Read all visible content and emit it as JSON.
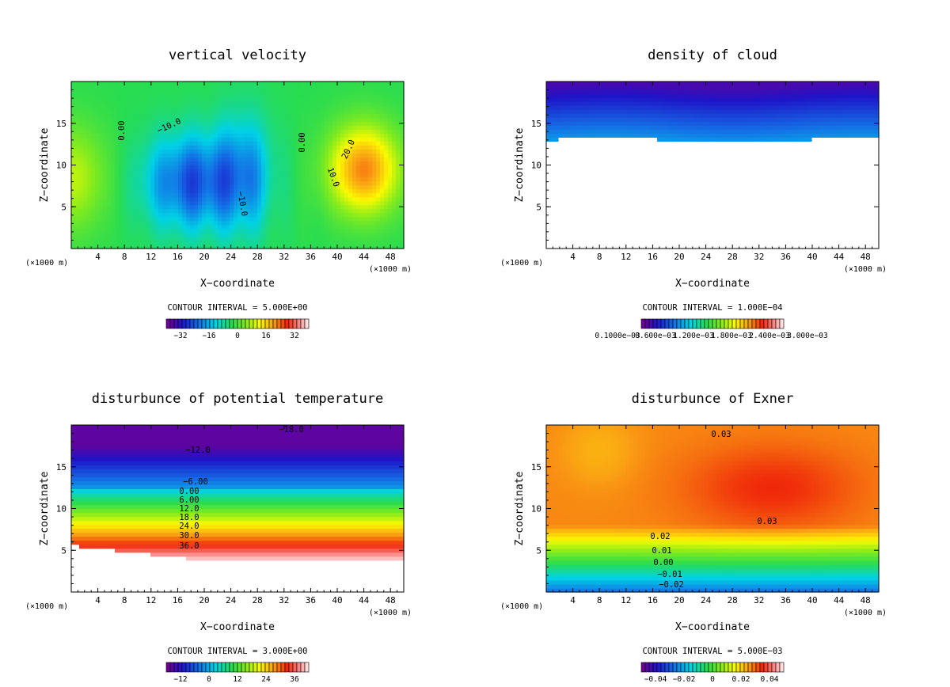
{
  "chart_data": [
    {
      "type": "heatmap",
      "title": "vertical velocity",
      "xlabel": "X−coordinate",
      "ylabel": "Z−coordinate",
      "xlim": [
        0,
        50
      ],
      "ylim": [
        0,
        20
      ],
      "xticks": [
        4,
        8,
        12,
        16,
        20,
        24,
        28,
        32,
        36,
        40,
        44,
        48
      ],
      "yticks": [
        5,
        10,
        15
      ],
      "x_unit_label": "(×1000 m)",
      "contour_interval": "CONTOUR INTERVAL = 5.000E+00",
      "colorbar_ticks": [
        "−32",
        "−16",
        "0",
        "16",
        "32"
      ],
      "contour_labels": [
        "0.00",
        "0.00",
        "−10.0",
        "−10.0",
        "10.0",
        "20.0"
      ],
      "field": "velocity"
    },
    {
      "type": "heatmap",
      "title": "density of cloud",
      "xlabel": "X−coordinate",
      "ylabel": "Z−coordinate",
      "xlim": [
        0,
        50
      ],
      "ylim": [
        0,
        20
      ],
      "xticks": [
        4,
        8,
        12,
        16,
        20,
        24,
        28,
        32,
        36,
        40,
        44,
        48
      ],
      "yticks": [
        5,
        10,
        15
      ],
      "x_unit_label": "(×1000 m)",
      "contour_interval": "CONTOUR INTERVAL = 1.000E−04",
      "colorbar_ticks": [
        "0.1000e−03",
        "0.600e−03",
        "1.200e−03",
        "1.800e−03",
        "2.400e−03",
        "3.000e−03"
      ],
      "contour_labels": [],
      "field": "cloud"
    },
    {
      "type": "heatmap",
      "title": "disturbunce of potential temperature",
      "xlabel": "X−coordinate",
      "ylabel": "Z−coordinate",
      "xlim": [
        0,
        50
      ],
      "ylim": [
        0,
        20
      ],
      "xticks": [
        4,
        8,
        12,
        16,
        20,
        24,
        28,
        32,
        36,
        40,
        44,
        48
      ],
      "yticks": [
        5,
        10,
        15
      ],
      "x_unit_label": "(×1000 m)",
      "contour_interval": "CONTOUR INTERVAL = 3.000E+00",
      "colorbar_ticks": [
        "−12",
        "0",
        "12",
        "24",
        "36"
      ],
      "contour_labels": [
        "−18.0",
        "−12.0",
        "−6.00",
        "0.00",
        "6.00",
        "12.0",
        "18.0",
        "24.0",
        "30.0",
        "36.0"
      ],
      "field": "theta"
    },
    {
      "type": "heatmap",
      "title": "disturbunce of Exner",
      "xlabel": "X−coordinate",
      "ylabel": "Z−coordinate",
      "xlim": [
        0,
        50
      ],
      "ylim": [
        0,
        20
      ],
      "xticks": [
        4,
        8,
        12,
        16,
        20,
        24,
        28,
        32,
        36,
        40,
        44,
        48
      ],
      "yticks": [
        5,
        10,
        15
      ],
      "x_unit_label": "(×1000 m)",
      "contour_interval": "CONTOUR INTERVAL = 5.000E−03",
      "colorbar_ticks": [
        "−0.04",
        "−0.02",
        "0",
        "0.02",
        "0.04"
      ],
      "contour_labels": [
        "0.03",
        "0.03",
        "0.02",
        "0.01",
        "0.00",
        "−0.01",
        "−0.02"
      ],
      "field": "exner"
    }
  ]
}
